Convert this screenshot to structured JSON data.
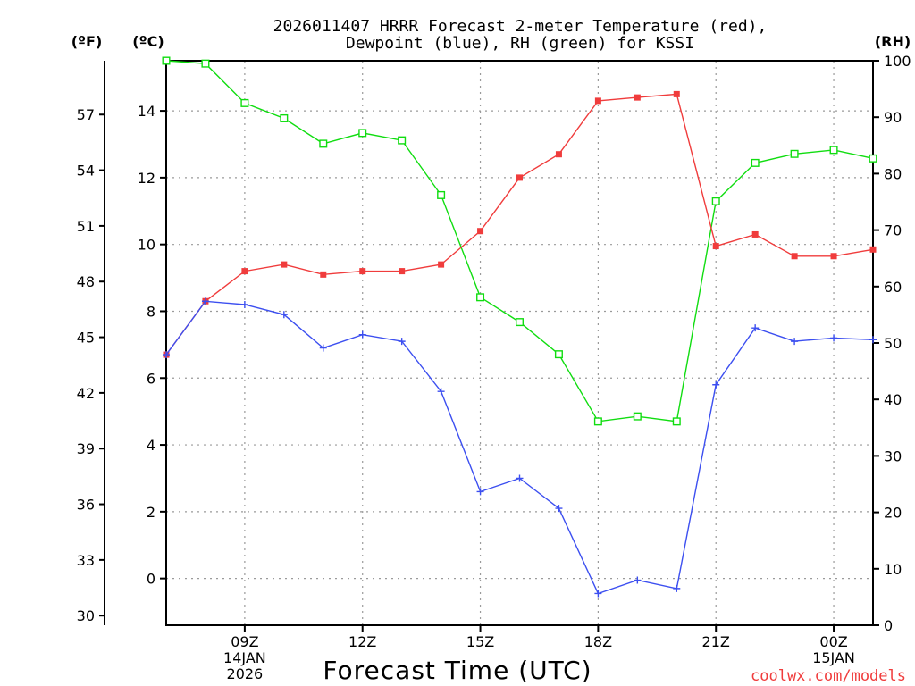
{
  "chart_data": {
    "type": "line",
    "title_line1": "2026011407 HRRR Forecast 2-meter Temperature (red),",
    "title_line2": "Dewpoint (blue), RH (green) for KSSI",
    "xlabel": "Forecast Time (UTC)",
    "left_f_label": "(ºF)",
    "left_c_label": "(ºC)",
    "right_label": "(RH)",
    "credit": "coolwx.com/models",
    "x_hours": [
      7,
      8,
      9,
      10,
      11,
      12,
      13,
      14,
      15,
      16,
      17,
      18,
      19,
      20,
      21,
      22,
      23,
      24,
      25
    ],
    "xlim": [
      7,
      25
    ],
    "x_ticks": [
      {
        "hour": 9,
        "label": "09Z",
        "sub1": "14JAN",
        "sub2": "2026"
      },
      {
        "hour": 12,
        "label": "12Z",
        "sub1": "",
        "sub2": ""
      },
      {
        "hour": 15,
        "label": "15Z",
        "sub1": "",
        "sub2": ""
      },
      {
        "hour": 18,
        "label": "18Z",
        "sub1": "",
        "sub2": ""
      },
      {
        "hour": 21,
        "label": "21Z",
        "sub1": "",
        "sub2": ""
      },
      {
        "hour": 24,
        "label": "00Z",
        "sub1": "15JAN",
        "sub2": ""
      }
    ],
    "ylim_c": [
      -1.4,
      15.5
    ],
    "c_ticks": [
      "0",
      "2",
      "4",
      "6",
      "8",
      "10",
      "12",
      "14"
    ],
    "f_ticks": [
      "30",
      "33",
      "36",
      "39",
      "42",
      "45",
      "48",
      "51",
      "54",
      "57"
    ],
    "ylim_rh": [
      0,
      100
    ],
    "rh_ticks": [
      "0",
      "10",
      "20",
      "30",
      "40",
      "50",
      "60",
      "70",
      "80",
      "90",
      "100"
    ],
    "series": [
      {
        "name": "Temperature",
        "axis": "C",
        "color": "#f03c3c",
        "marker": "filled-square",
        "values": [
          6.7,
          8.3,
          9.2,
          9.4,
          9.1,
          9.2,
          9.2,
          9.4,
          10.4,
          12.0,
          12.7,
          14.3,
          14.4,
          14.5,
          9.95,
          10.3,
          9.65,
          9.65,
          9.85
        ]
      },
      {
        "name": "Dewpoint",
        "axis": "C",
        "color": "#3c4ff0",
        "marker": "plus",
        "values": [
          6.7,
          8.3,
          8.2,
          7.9,
          6.9,
          7.3,
          7.1,
          5.6,
          2.6,
          3.0,
          2.1,
          -0.45,
          -0.05,
          -0.3,
          5.8,
          7.5,
          7.1,
          7.2,
          7.15
        ]
      },
      {
        "name": "RH",
        "axis": "RH",
        "color": "#10dd10",
        "marker": "open-square",
        "values": [
          100,
          99.5,
          92.5,
          89.8,
          85.3,
          87.2,
          85.9,
          76.2,
          58.1,
          53.7,
          48.0,
          36.1,
          37.0,
          36.1,
          75.1,
          81.9,
          83.5,
          84.2,
          82.7
        ]
      }
    ]
  }
}
